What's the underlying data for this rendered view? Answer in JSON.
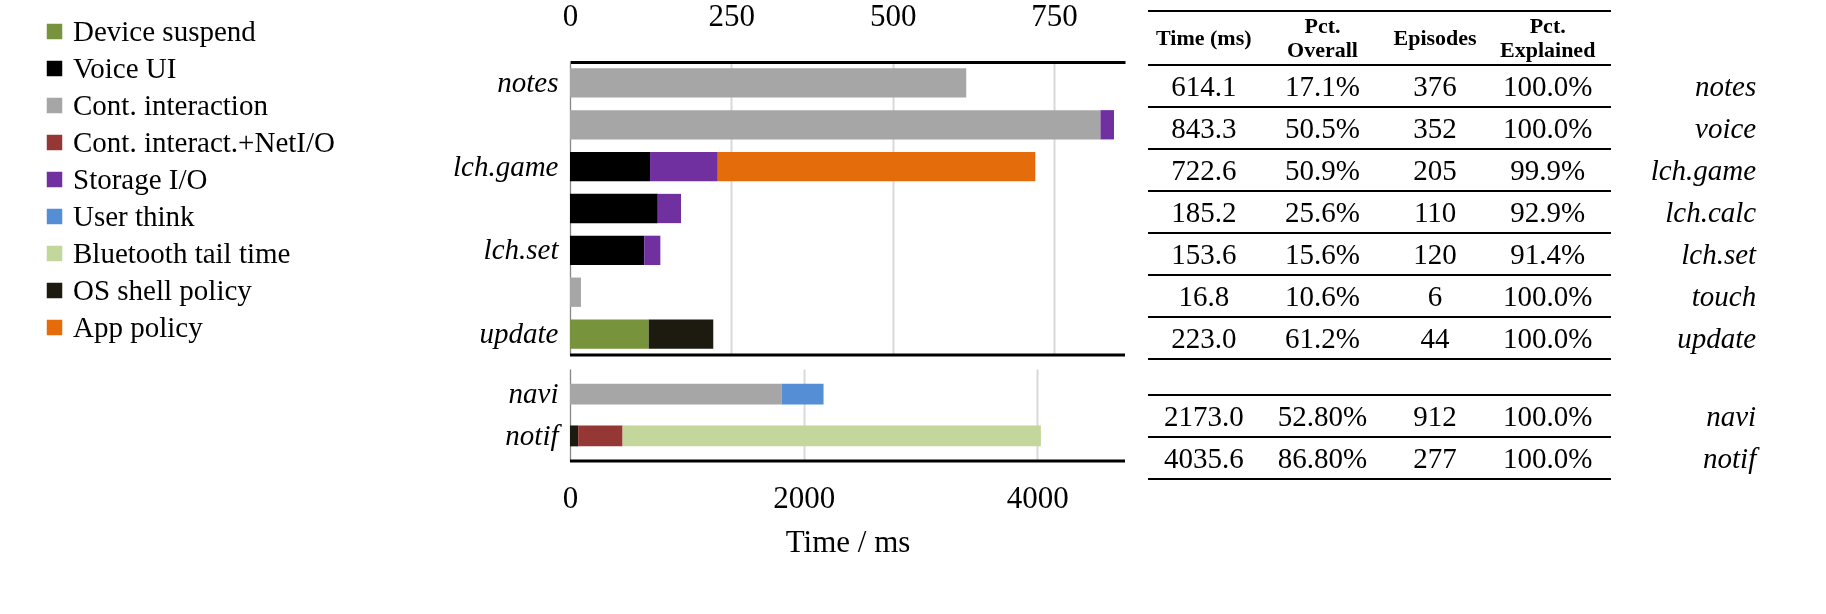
{
  "chart_data": [
    {
      "type": "bar",
      "orientation": "horizontal",
      "stacked": true,
      "categories": [
        "notes",
        null,
        "lch.game",
        null,
        "lch.set",
        null,
        "update"
      ],
      "x2lim": [
        0,
        860
      ],
      "x2ticks": [
        0,
        250,
        500,
        750
      ],
      "grid": "x",
      "legend": "left",
      "series": [
        {
          "name": "Device suspend",
          "axis": "x2",
          "color": "#77933c",
          "values": [
            null,
            null,
            null,
            null,
            null,
            null,
            122
          ]
        },
        {
          "name": "Voice UI",
          "axis": "x2",
          "color": "#000000",
          "values": [
            null,
            null,
            124,
            136,
            115,
            null,
            null
          ]
        },
        {
          "name": "Cont. interaction",
          "axis": "x2",
          "color": "#a6a6a6",
          "values": [
            614,
            822,
            null,
            null,
            null,
            17,
            null
          ]
        },
        {
          "name": "Cont. interact.+NetI/O",
          "axis": "x2",
          "color": "#953735",
          "values": [
            null,
            null,
            null,
            null,
            null,
            null,
            null
          ]
        },
        {
          "name": "Storage I/O",
          "axis": "x2",
          "color": "#7030a0",
          "values": [
            null,
            21,
            105,
            36,
            25,
            null,
            null
          ]
        },
        {
          "name": "User think",
          "axis": "x2",
          "color": "#558ed5",
          "values": [
            null,
            null,
            null,
            null,
            null,
            null,
            null
          ]
        },
        {
          "name": "Bluetooth tail time",
          "axis": "x2",
          "color": "#c3d69b",
          "values": [
            null,
            null,
            null,
            null,
            null,
            null,
            null
          ]
        },
        {
          "name": "OS shell policy",
          "axis": "x2",
          "color": "#1d1b10",
          "values": [
            null,
            null,
            null,
            null,
            null,
            null,
            100
          ]
        },
        {
          "name": "App policy",
          "axis": "x2",
          "color": "#e46c0a",
          "values": [
            null,
            null,
            492,
            null,
            null,
            null,
            null
          ]
        }
      ]
    },
    {
      "type": "bar",
      "orientation": "horizontal",
      "stacked": true,
      "categories": [
        "navi",
        "notif"
      ],
      "xlim": [
        0,
        4750
      ],
      "xticks": [
        0,
        2000,
        4000
      ],
      "xlabel": "Time / ms",
      "grid": "x",
      "series": [
        {
          "color": "#1d1b10",
          "values": [
            null,
            70
          ]
        },
        {
          "color": "#a6a6a6",
          "values": [
            1810,
            null
          ]
        },
        {
          "color": "#953735",
          "values": [
            null,
            380
          ]
        },
        {
          "color": "#558ed5",
          "values": [
            360,
            null
          ]
        },
        {
          "color": "#c3d69b",
          "values": [
            null,
            3580
          ]
        }
      ]
    },
    {
      "type": "other",
      "data_labels": true,
      "categories": [
        "notes",
        "voice",
        "lch.game",
        "lch.calc",
        "lch.set",
        "touch",
        "update",
        null,
        "navi",
        "notif"
      ],
      "series": [
        {
          "name": "Time (ms)",
          "values": [
            614.1,
            843.3,
            722.6,
            185.2,
            153.6,
            16.8,
            223.0,
            null,
            2173.0,
            4035.6
          ],
          "value_labels": [
            "614.1",
            "843.3",
            "722.6",
            "185.2",
            "153.6",
            "16.8",
            "223.0",
            null,
            "2173.0",
            "4035.6"
          ]
        },
        {
          "name": "Pct. Overall",
          "values": [
            17.1,
            50.5,
            50.9,
            25.6,
            15.6,
            10.6,
            61.2,
            null,
            52.8,
            86.8
          ],
          "value_labels": [
            "17.1%",
            "50.5%",
            "50.9%",
            "25.6%",
            "15.6%",
            "10.6%",
            "61.2%",
            null,
            "52.80%",
            "86.80%"
          ]
        },
        {
          "name": "Episodes",
          "values": [
            376,
            352,
            205,
            110,
            120,
            6,
            44,
            null,
            912,
            277
          ]
        },
        {
          "name": "Pct. Explained",
          "values": [
            100.0,
            100.0,
            99.9,
            92.9,
            91.4,
            100.0,
            100.0,
            null,
            100.0,
            100.0
          ],
          "value_labels": [
            "100.0%",
            "100.0%",
            "99.9%",
            "92.9%",
            "91.4%",
            "100.0%",
            "100.0%",
            null,
            "100.0%",
            "100.0%"
          ]
        }
      ]
    }
  ]
}
